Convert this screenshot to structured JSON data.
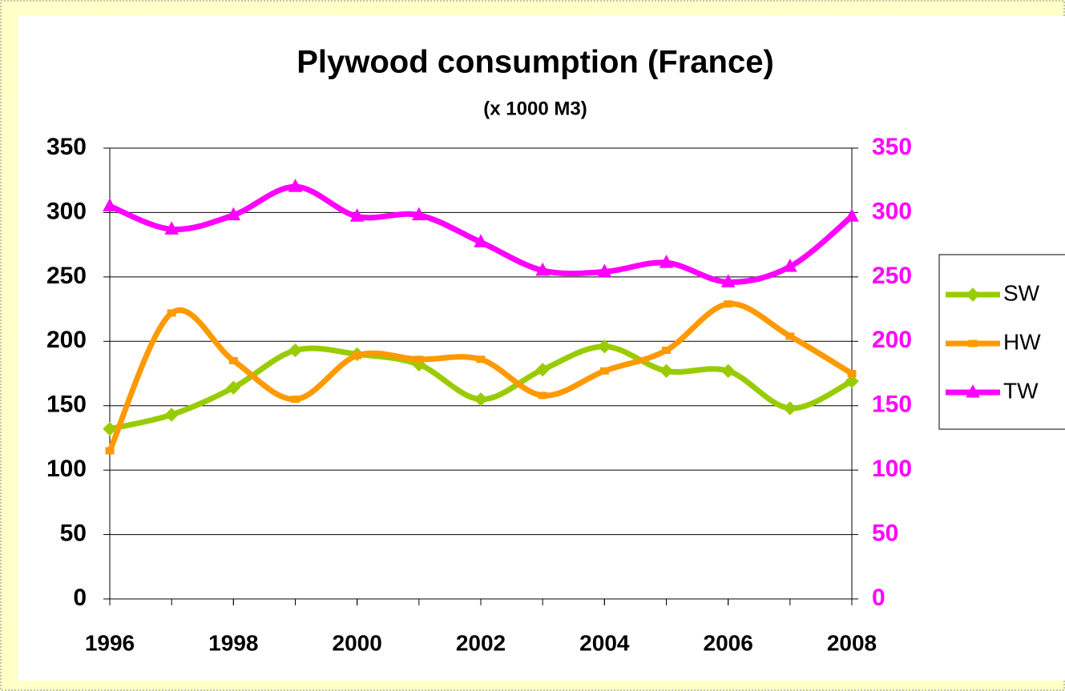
{
  "chart_data": {
    "type": "line",
    "title": "Plywood consumption (France)",
    "subtitle": "(x 1000 M3)",
    "x": [
      1996,
      1997,
      1998,
      1999,
      2000,
      2001,
      2002,
      2003,
      2004,
      2005,
      2006,
      2007,
      2008
    ],
    "xlim": [
      1996,
      2008
    ],
    "xticks": [
      1996,
      1998,
      2000,
      2002,
      2004,
      2006,
      2008
    ],
    "ylim": [
      0,
      350
    ],
    "yticks": [
      0,
      50,
      100,
      150,
      200,
      250,
      300,
      350
    ],
    "y2lim": [
      0,
      350
    ],
    "y2ticks": [
      0,
      50,
      100,
      150,
      200,
      250,
      300,
      350
    ],
    "y2_color": "#ff00ff",
    "grid": true,
    "smooth": true,
    "legend": "right",
    "series": [
      {
        "name": "SW",
        "color": "#99cc00",
        "marker": "diamond",
        "values": [
          132,
          143,
          164,
          193,
          190,
          182,
          155,
          178,
          196,
          177,
          177,
          148,
          169
        ]
      },
      {
        "name": "HW",
        "color": "#ff9900",
        "marker": "dash",
        "values": [
          115,
          222,
          185,
          155,
          189,
          186,
          186,
          158,
          177,
          193,
          229,
          204,
          175
        ]
      },
      {
        "name": "TW",
        "color": "#ff00ff",
        "marker": "triangle",
        "axis": "y2",
        "values": [
          305,
          287,
          298,
          320,
          297,
          298,
          277,
          255,
          254,
          261,
          246,
          258,
          297
        ]
      }
    ]
  }
}
